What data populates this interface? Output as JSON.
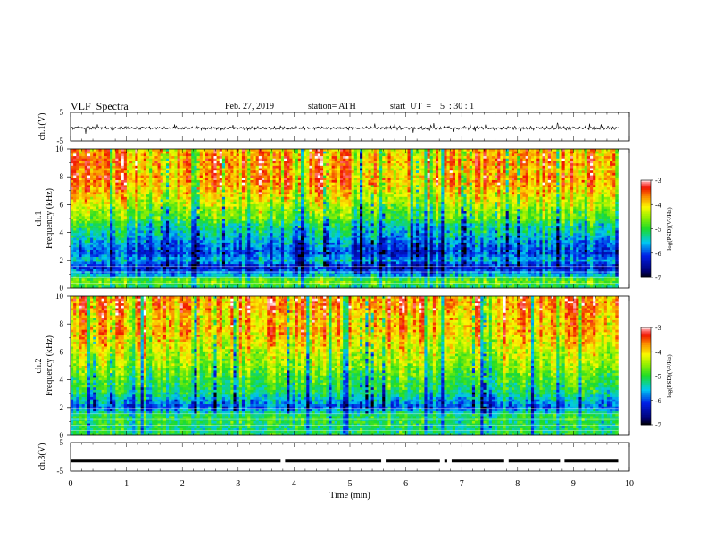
{
  "header": {
    "title": "VLF  Spectra",
    "date": "Feb. 27, 2019",
    "station": "station= ATH",
    "start": "start  UT  =    5  : 30 : 1"
  },
  "chart_data": [
    {
      "type": "line",
      "panel": "ch1-waveform",
      "ylabel": "ch.1(V)",
      "ylim": [
        -5,
        5
      ],
      "y_ticks": [
        "5",
        "-5"
      ],
      "xlim": [
        0,
        10
      ],
      "data_end_min": 9.8,
      "description_of_values": "noisy voltage waveform, centered near -0.5 V, excursions roughly -2 to +1.5 V"
    },
    {
      "type": "heatmap",
      "panel": "ch1-spectrogram",
      "ylabel_channel": "ch.1",
      "ylabel": "Frequency  (kHz)",
      "ylim": [
        0,
        10
      ],
      "y_ticks": [
        "0",
        "2",
        "4",
        "6",
        "8",
        "10"
      ],
      "xlim": [
        0,
        10
      ],
      "data_end_min": 9.8,
      "colorbar": {
        "label": "log(PSD)(V²/Hz)",
        "range": [
          -7,
          -3
        ],
        "ticks": [
          "-3",
          "-4",
          "-5",
          "-6",
          "-7"
        ]
      },
      "frequency_profile_khz": [
        {
          "f": 0.0,
          "v": -5.2
        },
        {
          "f": 0.5,
          "v": -4.6
        },
        {
          "f": 1.0,
          "v": -5.6
        },
        {
          "f": 1.5,
          "v": -6.3
        },
        {
          "f": 2.0,
          "v": -5.5
        },
        {
          "f": 2.5,
          "v": -6.0
        },
        {
          "f": 3.0,
          "v": -5.8
        },
        {
          "f": 3.5,
          "v": -5.6
        },
        {
          "f": 4.0,
          "v": -5.3
        },
        {
          "f": 4.5,
          "v": -5.2
        },
        {
          "f": 5.0,
          "v": -4.7
        },
        {
          "f": 5.5,
          "v": -4.6
        },
        {
          "f": 6.0,
          "v": -4.3
        },
        {
          "f": 6.5,
          "v": -4.1
        },
        {
          "f": 7.0,
          "v": -3.9
        },
        {
          "f": 7.5,
          "v": -3.7
        },
        {
          "f": 8.0,
          "v": -3.6
        },
        {
          "f": 8.5,
          "v": -3.8
        },
        {
          "f": 9.0,
          "v": -3.6
        },
        {
          "f": 9.5,
          "v": -3.7
        },
        {
          "f": 10.0,
          "v": -3.8
        }
      ]
    },
    {
      "type": "heatmap",
      "panel": "ch2-spectrogram",
      "ylabel_channel": "ch.2",
      "ylabel": "Frequency  (kHz)",
      "ylim": [
        0,
        10
      ],
      "y_ticks": [
        "0",
        "2",
        "4",
        "6",
        "8",
        "10"
      ],
      "xlim": [
        0,
        10
      ],
      "data_end_min": 9.8,
      "colorbar": {
        "label": "log(PSD)(V²/Hz)",
        "range": [
          -7,
          -3
        ],
        "ticks": [
          "-3",
          "-4",
          "-5",
          "-6",
          "-7"
        ]
      },
      "frequency_profile_khz": [
        {
          "f": 0.0,
          "v": -5.0
        },
        {
          "f": 0.5,
          "v": -5.2
        },
        {
          "f": 1.0,
          "v": -5.0
        },
        {
          "f": 1.5,
          "v": -5.1
        },
        {
          "f": 2.0,
          "v": -5.9
        },
        {
          "f": 2.5,
          "v": -5.6
        },
        {
          "f": 3.0,
          "v": -5.2
        },
        {
          "f": 3.5,
          "v": -5.0
        },
        {
          "f": 4.0,
          "v": -4.9
        },
        {
          "f": 4.5,
          "v": -4.7
        },
        {
          "f": 5.0,
          "v": -4.5
        },
        {
          "f": 5.5,
          "v": -4.4
        },
        {
          "f": 6.0,
          "v": -4.3
        },
        {
          "f": 6.5,
          "v": -4.1
        },
        {
          "f": 7.0,
          "v": -4.0
        },
        {
          "f": 7.5,
          "v": -3.8
        },
        {
          "f": 8.0,
          "v": -3.9
        },
        {
          "f": 8.5,
          "v": -3.9
        },
        {
          "f": 9.0,
          "v": -3.7
        },
        {
          "f": 9.5,
          "v": -3.6
        },
        {
          "f": 10.0,
          "v": -3.7
        }
      ]
    },
    {
      "type": "line",
      "panel": "ch3-signal",
      "ylabel": "ch.3(V)",
      "ylim": [
        -5,
        5
      ],
      "y_ticks": [
        "5",
        "-5"
      ],
      "xlim": [
        0,
        10
      ],
      "x_ticks": [
        "0",
        "1",
        "2",
        "3",
        "4",
        "5",
        "6",
        "7",
        "8",
        "9",
        "10"
      ],
      "xlabel": "Time  (min)",
      "data_end_min": 9.8,
      "level_v": -1.5,
      "gaps_min": [
        3.8,
        5.6,
        6.65,
        6.78,
        7.8,
        8.8
      ]
    }
  ]
}
